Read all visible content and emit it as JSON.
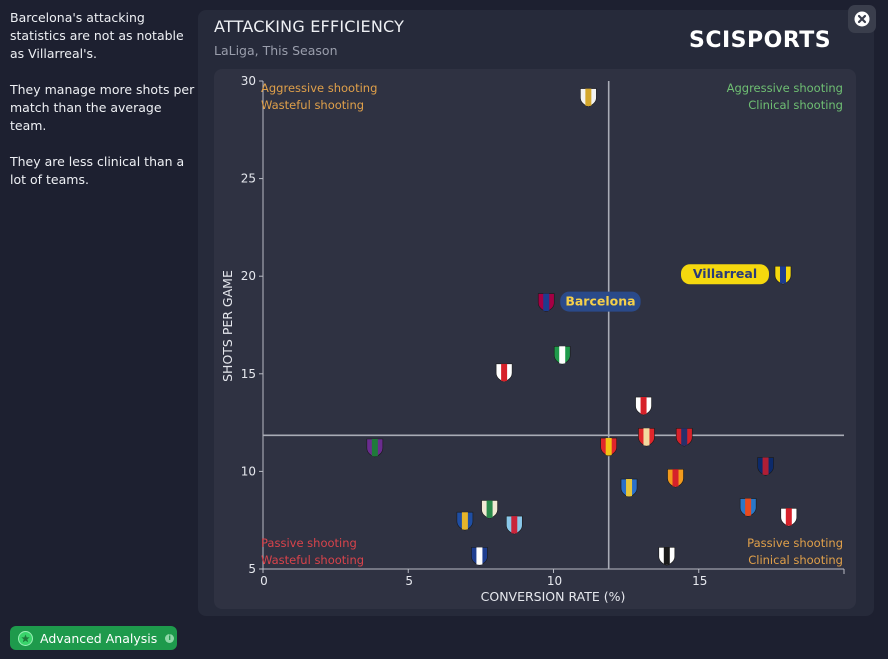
{
  "insight": {
    "paragraphs": [
      "Barcelona's attacking statistics are not as notable as Villarreal's.",
      "They manage more shots per match than the average team.",
      "They are less clinical than a lot of teams."
    ]
  },
  "header": {
    "title": "ATTACKING EFFICIENCY",
    "subtitle": "LaLiga, This Season",
    "logo": "SCISPORTS",
    "close_icon": "close-icon"
  },
  "footer": {
    "advanced_label": "Advanced Analysis",
    "advanced_icon": "star-icon",
    "info_icon": "info-icon"
  },
  "colors": {
    "aggressive_wasteful": "#e0a04a",
    "aggressive_clinical": "#6fbf73",
    "passive_wasteful": "#d9434b",
    "passive_clinical": "#e0a04a",
    "barcelona_badge": "#2a4a8a",
    "barcelona_text": "#f5d04a",
    "villarreal_badge": "#f5d80e",
    "villarreal_text": "#2a3a7a"
  },
  "chart_data": {
    "type": "scatter",
    "title": "ATTACKING EFFICIENCY",
    "subtitle": "LaLiga, This Season",
    "xlabel": "CONVERSION RATE (%)",
    "ylabel": "SHOTS PER GAME",
    "xlim": [
      0,
      20
    ],
    "ylim": [
      5,
      30
    ],
    "xticks": [
      "0",
      "5",
      "10",
      "15"
    ],
    "xtick_values": [
      0,
      5,
      10,
      15
    ],
    "yticks": [
      "5",
      "10",
      "15",
      "20",
      "25",
      "30"
    ],
    "ytick_values": [
      5,
      10,
      15,
      20,
      25,
      30
    ],
    "grid": false,
    "average": {
      "x": 11.9,
      "y": 11.85
    },
    "quadrants": {
      "top_left": [
        "Aggressive shooting",
        "Wasteful shooting"
      ],
      "top_right": [
        "Aggressive shooting",
        "Clinical shooting"
      ],
      "bottom_left": [
        "Passive shooting",
        "Wasteful shooting"
      ],
      "bottom_right": [
        "Passive shooting",
        "Clinical shooting"
      ]
    },
    "points": [
      {
        "icon": "real-madrid-crest-icon",
        "x": 11.2,
        "y": 29.2,
        "c1": "#f2f2f2",
        "c2": "#d4a72c"
      },
      {
        "icon": "barcelona-crest-icon",
        "x": 9.75,
        "y": 18.7,
        "c1": "#a50044",
        "c2": "#1d3c8f",
        "label": "Barcelona",
        "badge": "barcelona"
      },
      {
        "icon": "villarreal-crest-icon",
        "x": 17.9,
        "y": 20.1,
        "c1": "#f5d80e",
        "c2": "#1d3c8f",
        "label": "Villarreal",
        "badge": "villarreal",
        "label_side": "left"
      },
      {
        "icon": "real-betis-crest-icon",
        "x": 10.3,
        "y": 16.0,
        "c1": "#1f9a4b",
        "c2": "#ffffff"
      },
      {
        "icon": "sevilla-crest-icon",
        "x": 8.3,
        "y": 15.1,
        "c1": "#ffffff",
        "c2": "#d6212a"
      },
      {
        "icon": "athletic-club-crest-icon",
        "x": 13.1,
        "y": 13.4,
        "c1": "#ffffff",
        "c2": "#d6212a"
      },
      {
        "icon": "mallorca-crest-icon",
        "x": 11.9,
        "y": 11.3,
        "c1": "#e0262b",
        "c2": "#f2c314"
      },
      {
        "icon": "almeria-crest-icon",
        "x": 13.2,
        "y": 11.8,
        "c1": "#e0262b",
        "c2": "#f2d9a0"
      },
      {
        "icon": "atletico-madrid-crest-icon",
        "x": 14.5,
        "y": 11.8,
        "c1": "#d6212a",
        "c2": "#27306b"
      },
      {
        "icon": "real-valladolid-crest-icon",
        "x": 3.85,
        "y": 11.25,
        "c1": "#6a2c8f",
        "c2": "#1f7a3a"
      },
      {
        "icon": "levante-crest-icon",
        "x": 17.3,
        "y": 10.3,
        "c1": "#0c2a6b",
        "c2": "#b01e35"
      },
      {
        "icon": "getafe-crest-icon",
        "x": 12.6,
        "y": 9.2,
        "c1": "#2a6fc9",
        "c2": "#e6c53a"
      },
      {
        "icon": "valencia-crest-icon",
        "x": 14.2,
        "y": 9.7,
        "c1": "#f29a1c",
        "c2": "#d6212a"
      },
      {
        "icon": "espanyol-crest-icon",
        "x": 16.7,
        "y": 8.2,
        "c1": "#2a78c8",
        "c2": "#e84a1e"
      },
      {
        "icon": "rayo-vallecano-crest-icon",
        "x": 18.1,
        "y": 7.7,
        "c1": "#ffffff",
        "c2": "#d6212a"
      },
      {
        "icon": "elche-crest-icon",
        "x": 7.8,
        "y": 8.1,
        "c1": "#f2ead4",
        "c2": "#2a8a4a"
      },
      {
        "icon": "real-sociedad-crest-icon",
        "x": 6.95,
        "y": 7.5,
        "c1": "#1f4ea3",
        "c2": "#e6b52a"
      },
      {
        "icon": "celta-vigo-crest-icon",
        "x": 8.65,
        "y": 7.3,
        "c1": "#8ac8ea",
        "c2": "#c8243a"
      },
      {
        "icon": "tenerife-crest-icon",
        "x": 7.45,
        "y": 5.7,
        "c1": "#1f3e8f",
        "c2": "#ffffff"
      },
      {
        "icon": "albacete-crest-icon",
        "x": 13.9,
        "y": 5.7,
        "c1": "#ffffff",
        "c2": "#1a1a1a"
      }
    ]
  }
}
